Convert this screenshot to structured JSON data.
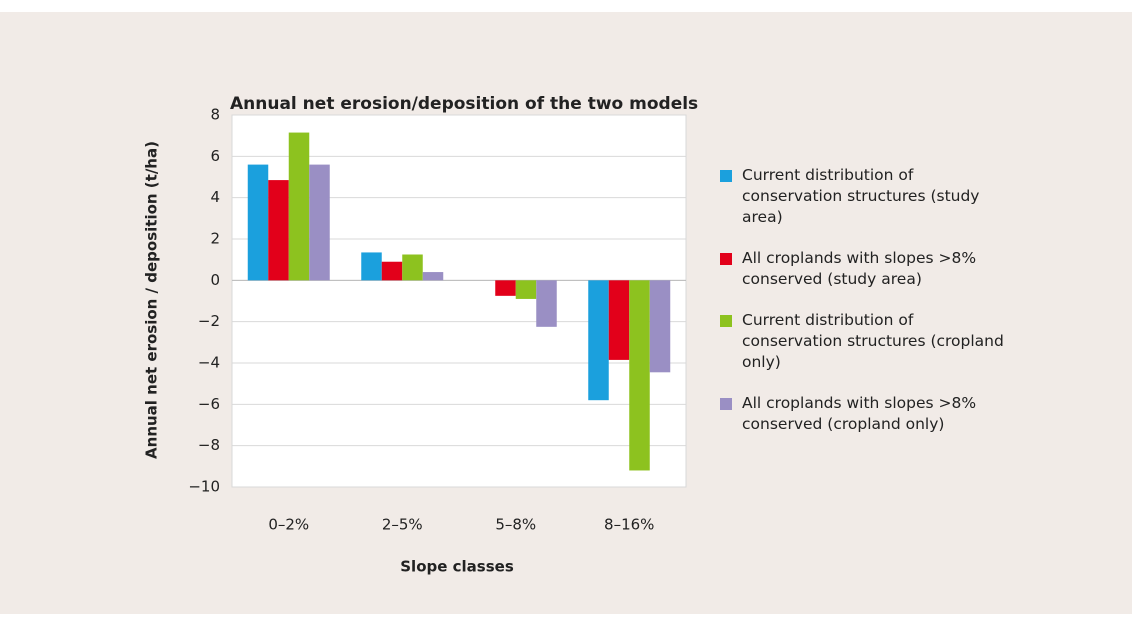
{
  "chart_data": {
    "type": "bar",
    "title": "Annual net erosion/deposition of the two models",
    "x_label": "Slope classes",
    "y_label": "Annual net erosion / deposition (t/ha)",
    "categories": [
      "0–2%",
      "2–5%",
      "5–8%",
      "8–16%"
    ],
    "series": [
      {
        "name": "Current distribution of conservation structures (study area)",
        "color": "#1ba0dd",
        "values": [
          5.6,
          1.35,
          null,
          -5.8
        ]
      },
      {
        "name": "All croplands with slopes >8% conserved (study area)",
        "color": "#e2001a",
        "values": [
          4.85,
          0.9,
          -0.75,
          -3.85
        ]
      },
      {
        "name": "Current distribution of conservation structures (cropland only)",
        "color": "#8dc21f",
        "values": [
          7.15,
          1.25,
          -0.9,
          -9.2
        ]
      },
      {
        "name": "All croplands with slopes >8% conserved (cropland only)",
        "color": "#9a8fc4",
        "values": [
          5.6,
          0.4,
          -2.25,
          -4.45
        ]
      }
    ],
    "ylim": [
      -10,
      8
    ],
    "yticks": [
      {
        "value": -10,
        "label": "−10"
      },
      {
        "value": -8,
        "label": "−8"
      },
      {
        "value": -6,
        "label": "−6"
      },
      {
        "value": -4,
        "label": "−4"
      },
      {
        "value": -2,
        "label": "−2"
      },
      0,
      2,
      4,
      6,
      8
    ],
    "grid": true,
    "legend": "right"
  }
}
